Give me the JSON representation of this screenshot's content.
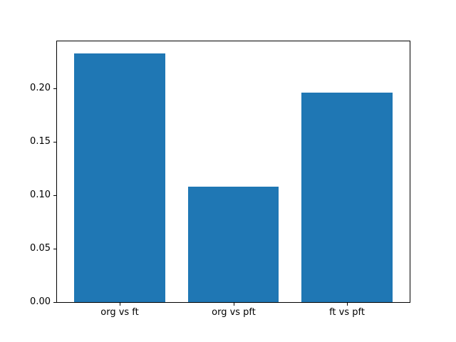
{
  "chart_data": {
    "type": "bar",
    "categories": [
      "org vs ft",
      "org vs pft",
      "ft vs pft"
    ],
    "values": [
      0.232,
      0.108,
      0.196
    ],
    "title": "",
    "xlabel": "",
    "ylabel": "",
    "ylim": [
      0,
      0.2436
    ],
    "xlim": [
      -0.55,
      2.55
    ],
    "bar_width_units": 0.8,
    "yticks": [
      0.0,
      0.05,
      0.1,
      0.15,
      0.2
    ],
    "ytick_labels": [
      "0.00",
      "0.05",
      "0.10",
      "0.15",
      "0.20"
    ],
    "bar_color": "#1f77b4",
    "background_color": "#ffffff",
    "spine_color": "#000000",
    "grid": false,
    "legend": null
  }
}
